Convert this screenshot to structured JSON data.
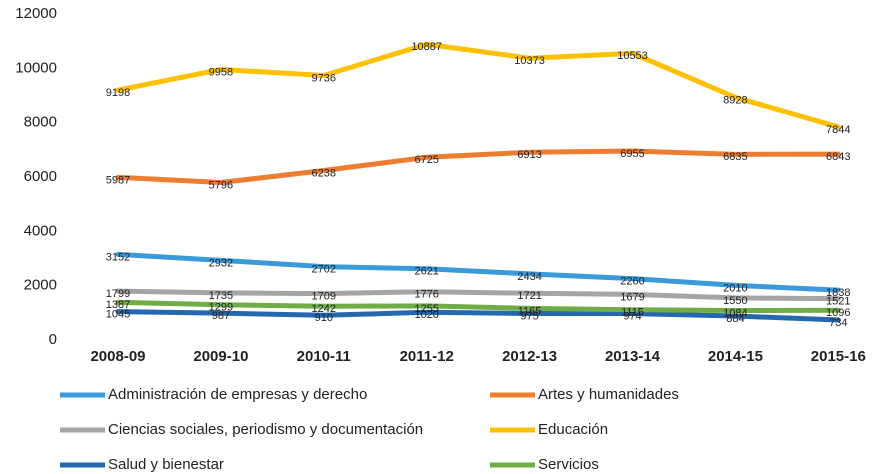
{
  "chart_data": {
    "type": "line",
    "categories": [
      "2008-09",
      "2009-10",
      "2010-11",
      "2011-12",
      "2012-13",
      "2013-14",
      "2014-15",
      "2015-16"
    ],
    "series": [
      {
        "name": "Administración de empresas y derecho",
        "color": "#3b9ad9",
        "values": [
          3152,
          2932,
          2702,
          2621,
          2434,
          2260,
          2010,
          1838
        ]
      },
      {
        "name": "Artes y humanidades",
        "color": "#ed7d31",
        "values": [
          5987,
          5796,
          6238,
          6725,
          6913,
          6955,
          6835,
          6843
        ]
      },
      {
        "name": "Ciencias sociales, periodismo y documentación",
        "color": "#a5a5a5",
        "values": [
          1799,
          1735,
          1709,
          1776,
          1721,
          1679,
          1550,
          1521
        ]
      },
      {
        "name": "Educación",
        "color": "#ffc000",
        "values": [
          9198,
          9958,
          9736,
          10887,
          10373,
          10553,
          8928,
          7844
        ]
      },
      {
        "name": "Salud y bienestar",
        "color": "#2568b0",
        "values": [
          1045,
          987,
          910,
          1020,
          975,
          974,
          884,
          734
        ]
      },
      {
        "name": "Servicios",
        "color": "#70ad47",
        "values": [
          1387,
          1299,
          1242,
          1255,
          1165,
          1115,
          1084,
          1096
        ]
      }
    ],
    "ylim": [
      0,
      12000
    ],
    "yticks": [
      0,
      2000,
      4000,
      6000,
      8000,
      10000,
      12000
    ],
    "grid": false,
    "legend": "bottom"
  }
}
